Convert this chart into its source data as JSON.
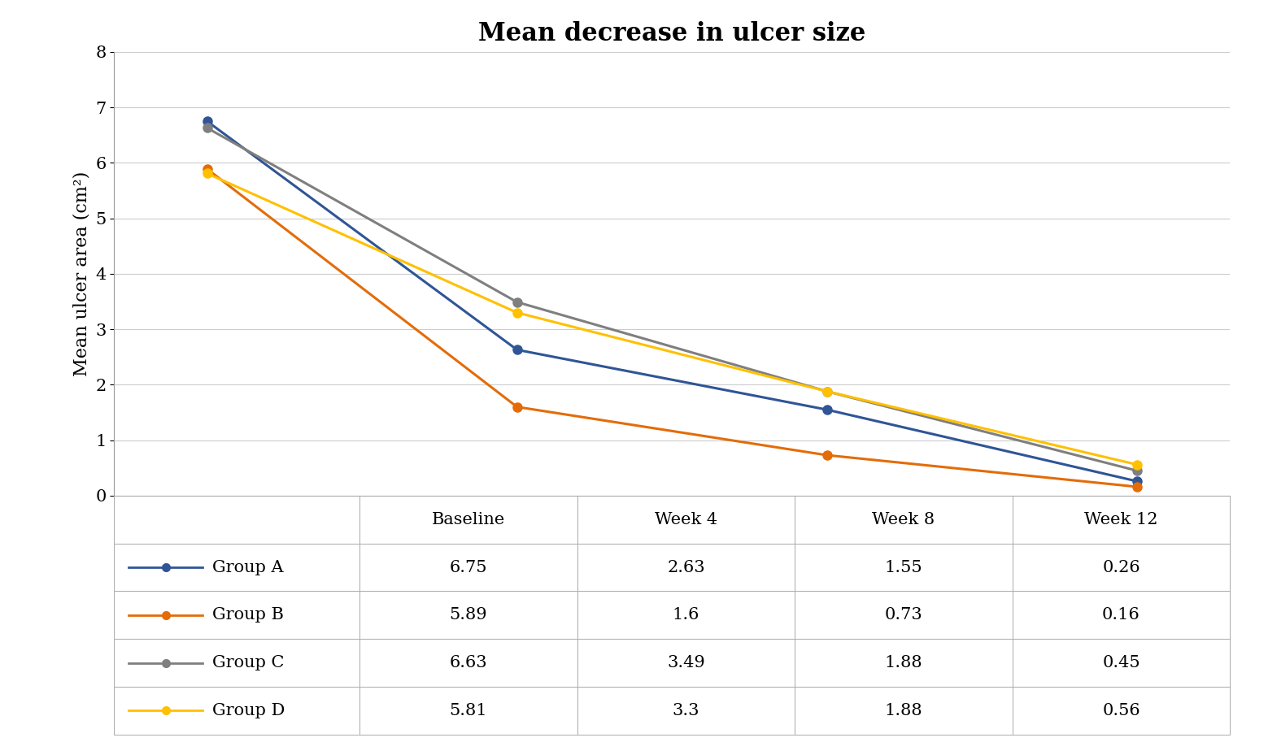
{
  "title": "Mean decrease in ulcer size",
  "ylabel": "Mean ulcer area (cm²)",
  "x_labels": [
    "Baseline",
    "Week 4",
    "Week 8",
    "Week 12"
  ],
  "x_positions": [
    0,
    1,
    2,
    3
  ],
  "ylim": [
    0,
    8
  ],
  "yticks": [
    0,
    1,
    2,
    3,
    4,
    5,
    6,
    7,
    8
  ],
  "groups": [
    {
      "name": "Group A",
      "values": [
        6.75,
        2.63,
        1.55,
        0.26
      ],
      "color": "#2F5597",
      "marker": "o"
    },
    {
      "name": "Group B",
      "values": [
        5.89,
        1.6,
        0.73,
        0.16
      ],
      "color": "#E36C09",
      "marker": "o"
    },
    {
      "name": "Group C",
      "values": [
        6.63,
        3.49,
        1.88,
        0.45
      ],
      "color": "#7F7F7F",
      "marker": "o"
    },
    {
      "name": "Group D",
      "values": [
        5.81,
        3.3,
        1.88,
        0.56
      ],
      "color": "#FFC000",
      "marker": "o"
    }
  ],
  "background_color": "#FFFFFF",
  "grid_color": "#CCCCCC",
  "title_fontsize": 22,
  "axis_label_fontsize": 16,
  "tick_fontsize": 15,
  "table_fontsize": 15,
  "line_width": 2.2,
  "marker_size": 8
}
